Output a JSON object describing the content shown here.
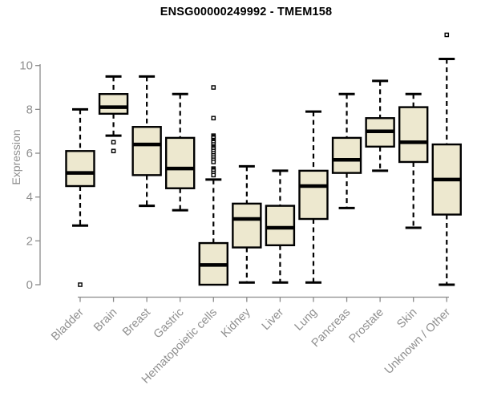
{
  "chart_data": {
    "type": "boxplot",
    "title": "ENSG00000249992 - TMEM158",
    "ylabel": "Expression",
    "xlabel": "",
    "ylim": [
      0,
      10
    ],
    "yticks": [
      0,
      2,
      4,
      6,
      8,
      10
    ],
    "grid": false,
    "legend": false,
    "categories": [
      "Bladder",
      "Brain",
      "Breast",
      "Gastric",
      "Hematopoietic cells",
      "Kidney",
      "Liver",
      "Lung",
      "Pancreas",
      "Prostate",
      "Skin",
      "Unknown / Other"
    ],
    "series": [
      {
        "category": "Bladder",
        "whisker_low": 2.7,
        "q1": 4.5,
        "median": 5.1,
        "q3": 6.1,
        "whisker_high": 8.0,
        "outliers": [
          0
        ]
      },
      {
        "category": "Brain",
        "whisker_low": 6.8,
        "q1": 7.8,
        "median": 8.1,
        "q3": 8.7,
        "whisker_high": 9.5,
        "outliers": [
          6.5,
          6.1
        ]
      },
      {
        "category": "Breast",
        "whisker_low": 3.6,
        "q1": 5.0,
        "median": 6.4,
        "q3": 7.2,
        "whisker_high": 9.5,
        "outliers": []
      },
      {
        "category": "Gastric",
        "whisker_low": 3.4,
        "q1": 4.4,
        "median": 5.3,
        "q3": 6.7,
        "whisker_high": 8.7,
        "outliers": []
      },
      {
        "category": "Hematopoietic cells",
        "whisker_low": 0.0,
        "q1": 0.0,
        "median": 0.9,
        "q3": 1.9,
        "whisker_high": 4.8,
        "outliers": [
          9.0,
          7.6,
          6.8,
          6.75,
          6.7,
          6.6,
          6.55,
          6.5,
          6.4,
          6.3,
          6.25,
          6.2,
          6.1,
          6.0,
          5.9,
          5.8,
          5.7,
          5.6,
          5.3,
          5.25,
          5.2,
          5.1,
          5.0
        ]
      },
      {
        "category": "Kidney",
        "whisker_low": 0.1,
        "q1": 1.7,
        "median": 3.0,
        "q3": 3.7,
        "whisker_high": 5.4,
        "outliers": []
      },
      {
        "category": "Liver",
        "whisker_low": 0.1,
        "q1": 1.8,
        "median": 2.6,
        "q3": 3.6,
        "whisker_high": 5.2,
        "outliers": []
      },
      {
        "category": "Lung",
        "whisker_low": 0.1,
        "q1": 3.0,
        "median": 4.5,
        "q3": 5.2,
        "whisker_high": 7.9,
        "outliers": []
      },
      {
        "category": "Pancreas",
        "whisker_low": 3.5,
        "q1": 5.1,
        "median": 5.7,
        "q3": 6.7,
        "whisker_high": 8.7,
        "outliers": []
      },
      {
        "category": "Prostate",
        "whisker_low": 5.2,
        "q1": 6.3,
        "median": 7.0,
        "q3": 7.6,
        "whisker_high": 9.3,
        "outliers": []
      },
      {
        "category": "Skin",
        "whisker_low": 2.6,
        "q1": 5.6,
        "median": 6.5,
        "q3": 8.1,
        "whisker_high": 8.7,
        "outliers": []
      },
      {
        "category": "Unknown / Other",
        "whisker_low": 0.0,
        "q1": 3.2,
        "median": 4.8,
        "q3": 6.4,
        "whisker_high": 10.3,
        "outliers": [
          11.4
        ]
      }
    ],
    "colors": {
      "box_fill": "#EDE8CF",
      "box_border": "#000000",
      "median": "#000000",
      "whisker": "#000000",
      "outlier_fill": "#FFFFFF",
      "axis": "#8B8B8B",
      "tick_label": "#8F8F8F",
      "title": "#000000"
    }
  }
}
